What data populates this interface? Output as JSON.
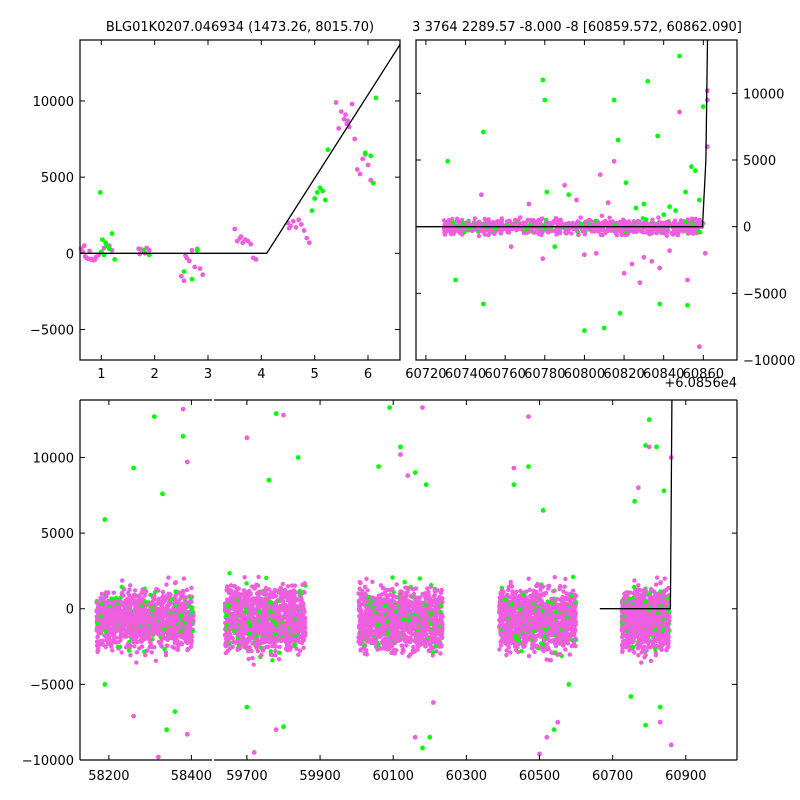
{
  "colors": {
    "magenta": "#ee5ede",
    "green": "#00ff00",
    "model": "#000000"
  },
  "chart_data": [
    {
      "id": "top-left",
      "type": "scatter",
      "title": "BLG01K0207.046934 (1473.26, 8015.70)",
      "xlabel": "",
      "ylabel": "",
      "xlim": [
        0.6,
        6.6
      ],
      "ylim": [
        -7000,
        14000
      ],
      "xticks": [
        1,
        2,
        3,
        4,
        5,
        6
      ],
      "yticks": [
        -5000,
        0,
        5000,
        10000
      ],
      "ytick_side": "left",
      "model_line": {
        "x": [
          0.6,
          4.1,
          6.6
        ],
        "y": [
          0,
          0,
          13700
        ]
      },
      "series": [
        {
          "color_key": "magenta",
          "points": [
            [
              0.62,
              300
            ],
            [
              0.65,
              100
            ],
            [
              0.7,
              -200
            ],
            [
              0.75,
              -350
            ],
            [
              0.8,
              -400
            ],
            [
              0.85,
              -450
            ],
            [
              0.9,
              -250
            ],
            [
              0.95,
              -100
            ],
            [
              0.68,
              500
            ],
            [
              0.72,
              -300
            ],
            [
              0.78,
              150
            ],
            [
              0.82,
              -380
            ],
            [
              0.88,
              -420
            ],
            [
              1.05,
              350
            ],
            [
              1.15,
              500
            ],
            [
              1.2,
              200
            ],
            [
              1.7,
              300
            ],
            [
              1.75,
              250
            ],
            [
              1.8,
              100
            ],
            [
              1.85,
              350
            ],
            [
              1.9,
              200
            ],
            [
              1.72,
              -50
            ],
            [
              1.82,
              0
            ],
            [
              2.5,
              -1500
            ],
            [
              2.55,
              -1800
            ],
            [
              2.6,
              -300
            ],
            [
              2.65,
              -500
            ],
            [
              2.7,
              200
            ],
            [
              2.75,
              -900
            ],
            [
              2.8,
              300
            ],
            [
              2.85,
              -1000
            ],
            [
              2.9,
              -1400
            ],
            [
              2.58,
              -150
            ],
            [
              3.5,
              1600
            ],
            [
              3.55,
              800
            ],
            [
              3.6,
              1000
            ],
            [
              3.65,
              700
            ],
            [
              3.7,
              900
            ],
            [
              3.75,
              800
            ],
            [
              3.8,
              600
            ],
            [
              3.85,
              -300
            ],
            [
              3.9,
              -400
            ],
            [
              3.62,
              1100
            ],
            [
              4.5,
              2000
            ],
            [
              4.55,
              1800
            ],
            [
              4.6,
              2100
            ],
            [
              4.65,
              1700
            ],
            [
              4.7,
              2200
            ],
            [
              4.75,
              1900
            ],
            [
              4.8,
              1500
            ],
            [
              4.85,
              1000
            ],
            [
              4.9,
              700
            ],
            [
              4.52,
              1650
            ],
            [
              5.4,
              9900
            ],
            [
              5.45,
              8200
            ],
            [
              5.5,
              9300
            ],
            [
              5.55,
              8800
            ],
            [
              5.6,
              8500
            ],
            [
              5.65,
              8300
            ],
            [
              5.7,
              9800
            ],
            [
              5.75,
              7500
            ],
            [
              5.8,
              5500
            ],
            [
              5.85,
              5200
            ],
            [
              5.9,
              6200
            ],
            [
              5.95,
              6500
            ],
            [
              6.0,
              5800
            ],
            [
              6.05,
              4800
            ],
            [
              5.62,
              8700
            ],
            [
              5.58,
              9100
            ]
          ]
        },
        {
          "color_key": "green",
          "points": [
            [
              0.98,
              4000
            ],
            [
              1.0,
              100
            ],
            [
              1.05,
              -100
            ],
            [
              1.1,
              500
            ],
            [
              1.15,
              300
            ],
            [
              1.2,
              1300
            ],
            [
              1.25,
              -400
            ],
            [
              1.02,
              900
            ],
            [
              1.08,
              700
            ],
            [
              1.8,
              200
            ],
            [
              1.9,
              -100
            ],
            [
              2.55,
              -1200
            ],
            [
              2.7,
              -1700
            ],
            [
              2.8,
              200
            ],
            [
              4.95,
              2800
            ],
            [
              5.0,
              3600
            ],
            [
              5.05,
              4000
            ],
            [
              5.1,
              4300
            ],
            [
              5.15,
              4100
            ],
            [
              5.2,
              3500
            ],
            [
              5.25,
              6800
            ],
            [
              5.95,
              6600
            ],
            [
              6.05,
              6400
            ],
            [
              6.1,
              4600
            ],
            [
              6.15,
              10200
            ]
          ]
        }
      ]
    },
    {
      "id": "top-right",
      "type": "scatter",
      "title": "3 3764 2289.57 -8.000 -8 [60859.572, 60862.090]",
      "offset_label": "+6.0856e4",
      "xlabel": "",
      "ylabel": "",
      "xlim": [
        60715,
        60877
      ],
      "ylim": [
        -10000,
        14000
      ],
      "xticks": [
        60720,
        60740,
        60760,
        60780,
        60800,
        60820,
        60840,
        60860
      ],
      "xtick_labels": [
        "60720",
        "60740",
        "60760",
        "60780",
        "60800",
        "60820",
        "60840",
        "60860"
      ],
      "yticks": [
        -10000,
        -5000,
        0,
        5000,
        10000
      ],
      "ytick_side": "right",
      "model_line": {
        "x": [
          60715,
          60859.6,
          60861.3,
          60862.1
        ],
        "y": [
          0,
          0,
          5000,
          14000
        ]
      },
      "bands": [
        {
          "x_start": 60729,
          "x_end": 60860,
          "center": 0,
          "spread": 400
        }
      ],
      "series": [
        {
          "color_key": "magenta",
          "points": [
            [
              60748,
              2400
            ],
            [
              60763,
              -1500
            ],
            [
              60779,
              -2400
            ],
            [
              60790,
              3100
            ],
            [
              60796,
              2000
            ],
            [
              60806,
              -2000
            ],
            [
              60808,
              3900
            ],
            [
              60815,
              4900
            ],
            [
              60820,
              -3500
            ],
            [
              60828,
              -4200
            ],
            [
              60834,
              -2600
            ],
            [
              60838,
              -3100
            ],
            [
              60843,
              -1800
            ],
            [
              60848,
              8600
            ],
            [
              60852,
              -4000
            ],
            [
              60858,
              -9000
            ],
            [
              60861,
              -2000
            ],
            [
              60862,
              9500
            ],
            [
              60862,
              6000
            ],
            [
              60862,
              10200
            ],
            [
              60772,
              1700
            ],
            [
              60800,
              -2100
            ],
            [
              60812,
              1800
            ],
            [
              60830,
              -2300
            ],
            [
              60824,
              -2800
            ]
          ]
        },
        {
          "color_key": "green",
          "points": [
            [
              60731,
              4900
            ],
            [
              60735,
              -4000
            ],
            [
              60749,
              7100
            ],
            [
              60749,
              -5800
            ],
            [
              60779,
              11000
            ],
            [
              60780,
              9500
            ],
            [
              60781,
              2600
            ],
            [
              60785,
              -1500
            ],
            [
              60792,
              2400
            ],
            [
              60800,
              -7800
            ],
            [
              60810,
              -7600
            ],
            [
              60815,
              9500
            ],
            [
              60817,
              6500
            ],
            [
              60818,
              -6500
            ],
            [
              60821,
              3300
            ],
            [
              60826,
              1400
            ],
            [
              60830,
              1700
            ],
            [
              60832,
              10900
            ],
            [
              60837,
              6800
            ],
            [
              60838,
              -5800
            ],
            [
              60848,
              12800
            ],
            [
              60851,
              2600
            ],
            [
              60852,
              -5900
            ],
            [
              60854,
              4500
            ],
            [
              60856,
              4200
            ],
            [
              60858,
              2000
            ],
            [
              60860,
              9000
            ],
            [
              60843,
              1500
            ],
            [
              60846,
              1200
            ],
            [
              60840,
              900
            ]
          ]
        }
      ]
    },
    {
      "id": "bottom",
      "type": "scatter",
      "title": "",
      "xlabel": "",
      "ylabel": "",
      "ylim": [
        -10000,
        13800
      ],
      "yticks": [
        -10000,
        -5000,
        0,
        5000,
        10000
      ],
      "ytick_side": "left",
      "broken_axis": true,
      "segments": [
        {
          "xlim": [
            58130,
            58450
          ],
          "xticks": [
            58200,
            58400
          ]
        },
        {
          "xlim": [
            59610,
            61040
          ],
          "xticks": [
            59700,
            59900,
            60100,
            60300,
            60500,
            60700,
            60900
          ]
        }
      ],
      "model_line": {
        "x": [
          60665,
          60858,
          60859.6,
          60862.1
        ],
        "y": [
          0,
          0,
          5000,
          14000
        ]
      },
      "bands": [
        {
          "x_start": 58170,
          "x_end": 58405,
          "center": -700,
          "spread": 1300
        },
        {
          "x_start": 59640,
          "x_end": 59860,
          "center": -700,
          "spread": 1500
        },
        {
          "x_start": 60005,
          "x_end": 60235,
          "center": -700,
          "spread": 1400
        },
        {
          "x_start": 60390,
          "x_end": 60600,
          "center": -700,
          "spread": 1400
        },
        {
          "x_start": 60725,
          "x_end": 60855,
          "center": -700,
          "spread": 1300
        }
      ],
      "series": [
        {
          "color_key": "magenta",
          "points": [
            [
              58380,
              13200
            ],
            [
              58390,
              9700
            ],
            [
              58260,
              -7100
            ],
            [
              58390,
              -8300
            ],
            [
              58320,
              -9800
            ],
            [
              59700,
              11300
            ],
            [
              59800,
              12800
            ],
            [
              59720,
              -9500
            ],
            [
              59780,
              -8000
            ],
            [
              60120,
              10200
            ],
            [
              60140,
              8800
            ],
            [
              60160,
              -8500
            ],
            [
              60180,
              13300
            ],
            [
              60210,
              -6200
            ],
            [
              60430,
              9300
            ],
            [
              60470,
              12700
            ],
            [
              60500,
              -9600
            ],
            [
              60520,
              -8500
            ],
            [
              60550,
              -7500
            ],
            [
              60770,
              8000
            ],
            [
              60800,
              10700
            ],
            [
              60830,
              -7500
            ],
            [
              60860,
              10000
            ],
            [
              60860,
              -9000
            ]
          ]
        },
        {
          "color_key": "green",
          "points": [
            [
              58190,
              5900
            ],
            [
              58190,
              -5000
            ],
            [
              58310,
              12700
            ],
            [
              58260,
              9300
            ],
            [
              58330,
              7600
            ],
            [
              58340,
              -8000
            ],
            [
              58380,
              11400
            ],
            [
              58360,
              -6800
            ],
            [
              59780,
              12900
            ],
            [
              59840,
              10000
            ],
            [
              59760,
              8500
            ],
            [
              59700,
              -6500
            ],
            [
              59800,
              -7800
            ],
            [
              60060,
              9400
            ],
            [
              60090,
              13300
            ],
            [
              60120,
              10700
            ],
            [
              60160,
              9000
            ],
            [
              60190,
              8200
            ],
            [
              60200,
              -8500
            ],
            [
              60180,
              -9200
            ],
            [
              60470,
              9400
            ],
            [
              60430,
              8200
            ],
            [
              60510,
              6500
            ],
            [
              60540,
              -8000
            ],
            [
              60580,
              -5000
            ],
            [
              60800,
              12500
            ],
            [
              60790,
              10800
            ],
            [
              60820,
              10700
            ],
            [
              60840,
              7800
            ],
            [
              60760,
              7100
            ],
            [
              60790,
              -7700
            ],
            [
              60830,
              -6500
            ],
            [
              60750,
              -5800
            ]
          ]
        }
      ]
    }
  ]
}
